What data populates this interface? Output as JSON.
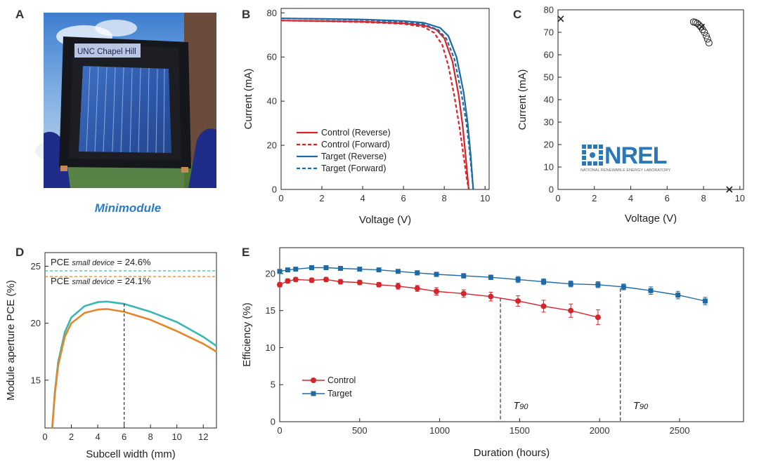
{
  "panel_letters": {
    "a": "A",
    "b": "B",
    "c": "C",
    "d": "D",
    "e": "E"
  },
  "photo": {
    "label": "UNC Chapel Hill",
    "caption": "Minimodule"
  },
  "nrel_logo": {
    "text": "NREL",
    "subtext": "NATIONAL RENEWABLE ENERGY LABORATORY"
  },
  "colors": {
    "control": "#d5252c",
    "target": "#1f6aa5",
    "orange": "#e6862a",
    "teal": "#3bb6b6",
    "caption": "#2a7dc4"
  },
  "chart_data": [
    {
      "id": "B",
      "type": "line",
      "xlabel": "Voltage (V)",
      "ylabel": "Current (mA)",
      "xlim": [
        0,
        10.2
      ],
      "ylim": [
        0,
        82
      ],
      "xticks": [
        "0",
        "2",
        "4",
        "6",
        "8",
        "10"
      ],
      "yticks": [
        "0",
        "20",
        "40",
        "60",
        "80"
      ],
      "series": [
        {
          "name": "Control (Reverse)",
          "style": "solid",
          "color": "control",
          "x": [
            0,
            2,
            4,
            6,
            7,
            7.6,
            8.0,
            8.4,
            8.7,
            8.9,
            9.05,
            9.15,
            9.2
          ],
          "y": [
            76.5,
            76.3,
            76.0,
            75.3,
            74.3,
            72.5,
            68.5,
            58,
            43,
            29,
            15,
            5,
            0
          ]
        },
        {
          "name": "Control (Forward)",
          "style": "dashed",
          "color": "control",
          "x": [
            0,
            2,
            4,
            6,
            7,
            7.5,
            7.9,
            8.2,
            8.5,
            8.75,
            8.95,
            9.1,
            9.2
          ],
          "y": [
            76.5,
            76.2,
            75.8,
            75.0,
            73.6,
            71.0,
            65.5,
            56,
            42,
            28,
            15,
            5,
            0
          ]
        },
        {
          "name": "Target (Reverse)",
          "style": "solid",
          "color": "target",
          "x": [
            0,
            2,
            4,
            6,
            7,
            7.8,
            8.2,
            8.6,
            8.95,
            9.15,
            9.3,
            9.38,
            9.42
          ],
          "y": [
            77.5,
            77.3,
            77.0,
            76.3,
            75.5,
            73.2,
            69.5,
            60,
            44,
            30,
            15,
            5,
            0
          ]
        },
        {
          "name": "Target (Forward)",
          "style": "dashed",
          "color": "target",
          "x": [
            0,
            2,
            4,
            6,
            7,
            7.7,
            8.1,
            8.5,
            8.85,
            9.1,
            9.27,
            9.37,
            9.42
          ],
          "y": [
            77.5,
            77.2,
            76.8,
            76.0,
            74.8,
            72.3,
            68.3,
            59,
            43,
            29,
            15,
            5,
            0
          ]
        }
      ]
    },
    {
      "id": "C",
      "type": "scatter",
      "xlabel": "Voltage (V)",
      "ylabel": "Current (mA)",
      "xlim": [
        0,
        10.2
      ],
      "ylim": [
        0,
        80
      ],
      "xticks": [
        "0",
        "2",
        "4",
        "6",
        "8",
        "10"
      ],
      "yticks": [
        "0",
        "10",
        "20",
        "30",
        "40",
        "50",
        "60",
        "70",
        "80"
      ],
      "circles": {
        "x": [
          7.45,
          7.55,
          7.65,
          7.75,
          7.85,
          7.95,
          8.05,
          8.15,
          8.22,
          8.3
        ],
        "y": [
          74.6,
          74.4,
          74.0,
          73.3,
          72.4,
          71.2,
          70.0,
          68.4,
          67.0,
          65.3
        ]
      },
      "crosses": {
        "x": [
          0.15,
          7.9,
          9.42
        ],
        "y": [
          76.0,
          72.4,
          0
        ]
      }
    },
    {
      "id": "D",
      "type": "line",
      "xlabel": "Subcell width (mm)",
      "ylabel": "Module aperture PCE (%)",
      "xlim": [
        0,
        13
      ],
      "ylim": [
        10.8,
        26.2
      ],
      "xticks": [
        "0",
        "2",
        "4",
        "6",
        "8",
        "10",
        "12"
      ],
      "yticks": [
        "15",
        "20",
        "25"
      ],
      "vline_x": 6,
      "ref_lines": [
        {
          "y": 24.6,
          "color": "teal",
          "label_pre": "PCE ",
          "label_sub": "small device",
          "label_post": " = 24.6%"
        },
        {
          "y": 24.1,
          "color": "orange",
          "label_pre": "PCE ",
          "label_sub": "small device",
          "label_post": " = 24.1%"
        }
      ],
      "series": [
        {
          "name": "teal curve",
          "color": "teal",
          "x": [
            0.55,
            0.75,
            1.0,
            1.5,
            2.0,
            3.0,
            4.0,
            4.7,
            6.0,
            8.0,
            10.0,
            12.0,
            13.0
          ],
          "y": [
            10.8,
            14.0,
            16.6,
            19.2,
            20.5,
            21.5,
            21.85,
            21.9,
            21.7,
            21.0,
            20.1,
            18.8,
            18.0
          ]
        },
        {
          "name": "orange curve",
          "color": "orange",
          "x": [
            0.55,
            0.75,
            1.0,
            1.5,
            2.0,
            3.0,
            4.0,
            4.7,
            6.0,
            8.0,
            10.0,
            12.0,
            13.0
          ],
          "y": [
            10.8,
            13.8,
            16.3,
            18.8,
            20.0,
            20.9,
            21.2,
            21.25,
            21.0,
            20.3,
            19.3,
            18.2,
            17.5
          ]
        }
      ]
    },
    {
      "id": "E",
      "type": "line",
      "xlabel": "Duration (hours)",
      "ylabel": "Efficiency (%)",
      "xlim": [
        0,
        2900
      ],
      "ylim": [
        0,
        23.5
      ],
      "xticks": [
        "0",
        "500",
        "1000",
        "1500",
        "2000",
        "2500"
      ],
      "yticks": [
        "0",
        "5",
        "10",
        "15",
        "20"
      ],
      "t90": [
        {
          "x": 1380,
          "label": "T",
          "sub": "90"
        },
        {
          "x": 2130,
          "label": "T",
          "sub": "90"
        }
      ],
      "series": [
        {
          "name": "Control",
          "marker": "circle",
          "color": "control",
          "x": [
            0,
            50,
            100,
            200,
            290,
            380,
            500,
            620,
            740,
            860,
            980,
            1150,
            1320,
            1490,
            1650,
            1820,
            1990
          ],
          "y": [
            18.5,
            19.0,
            19.2,
            19.1,
            19.2,
            18.9,
            18.8,
            18.5,
            18.3,
            18.0,
            17.6,
            17.3,
            16.9,
            16.3,
            15.6,
            15.0,
            14.1
          ],
          "err": [
            0.3,
            0.3,
            0.3,
            0.3,
            0.3,
            0.3,
            0.3,
            0.3,
            0.4,
            0.4,
            0.5,
            0.5,
            0.6,
            0.7,
            0.8,
            0.9,
            1.0
          ]
        },
        {
          "name": "Target",
          "marker": "square",
          "color": "target",
          "x": [
            0,
            50,
            100,
            200,
            290,
            380,
            500,
            620,
            740,
            860,
            980,
            1150,
            1320,
            1490,
            1650,
            1820,
            1990,
            2150,
            2320,
            2490,
            2660
          ],
          "y": [
            20.3,
            20.5,
            20.6,
            20.8,
            20.8,
            20.7,
            20.6,
            20.5,
            20.3,
            20.1,
            19.9,
            19.7,
            19.5,
            19.2,
            18.9,
            18.6,
            18.5,
            18.2,
            17.7,
            17.1,
            16.3
          ],
          "err": [
            0.2,
            0.2,
            0.2,
            0.2,
            0.2,
            0.2,
            0.2,
            0.2,
            0.2,
            0.3,
            0.3,
            0.3,
            0.3,
            0.4,
            0.4,
            0.4,
            0.4,
            0.4,
            0.5,
            0.5,
            0.5
          ]
        }
      ]
    }
  ]
}
